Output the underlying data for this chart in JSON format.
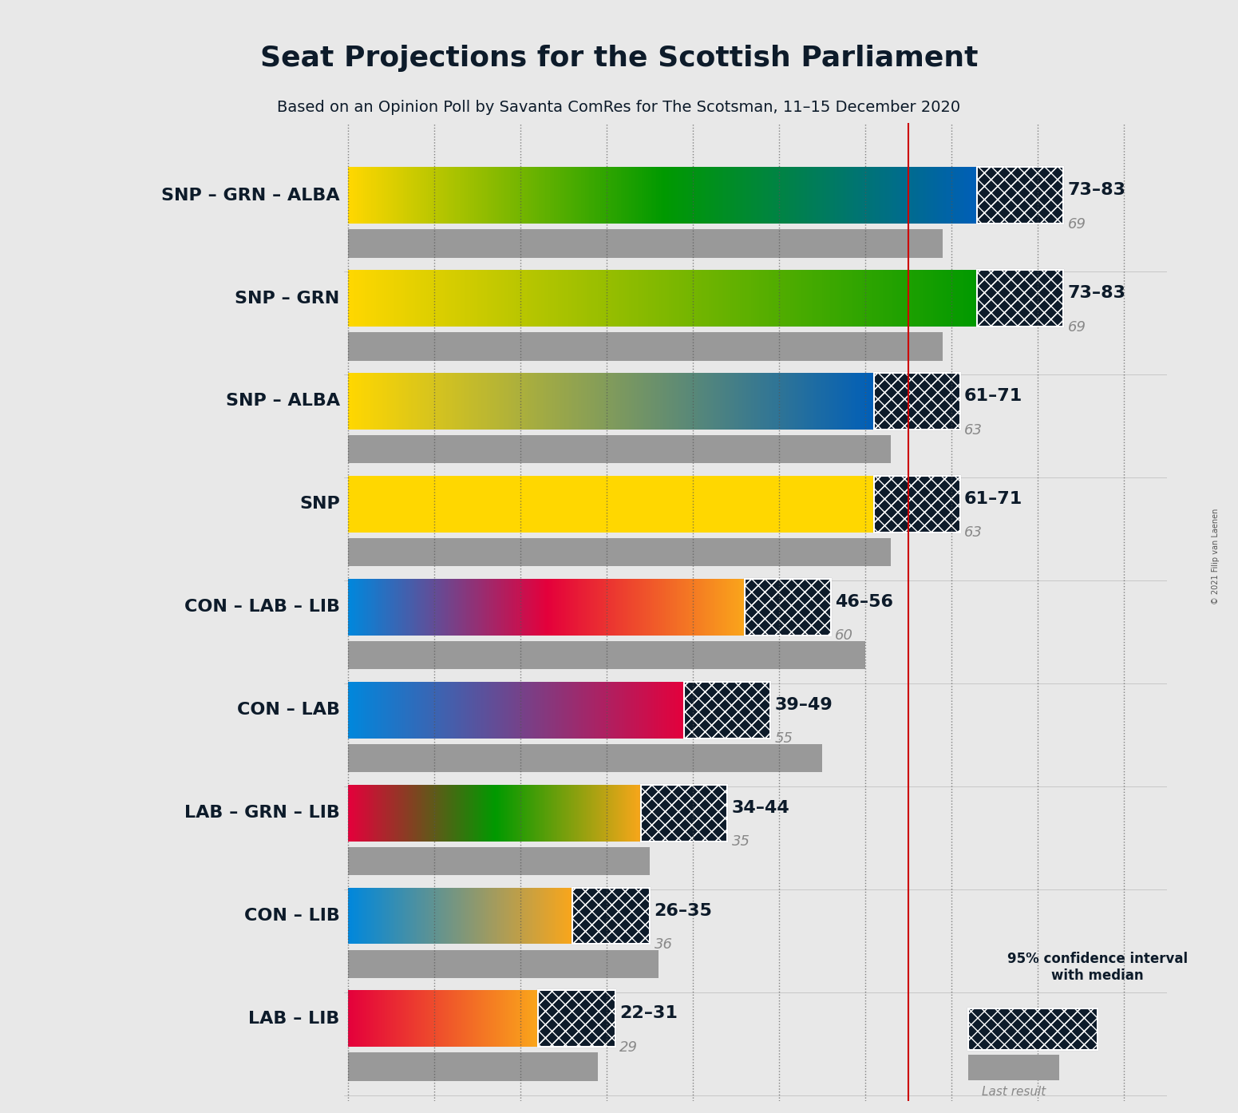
{
  "title": "Seat Projections for the Scottish Parliament",
  "subtitle": "Based on an Opinion Poll by Savanta ComRes for The Scotsman, 11–15 December 2020",
  "copyright": "© 2021 Filip van Laenen",
  "background_color": "#e8e8e8",
  "majority_line": 65,
  "x_max": 95,
  "coalitions": [
    {
      "label": "SNP – GRN – ALBA",
      "ci_low": 73,
      "ci_high": 83,
      "median": 78,
      "last_result": 69,
      "colors": [
        "#FFD700",
        "#009900",
        "#005EB8"
      ],
      "underline": false
    },
    {
      "label": "SNP – GRN",
      "ci_low": 73,
      "ci_high": 83,
      "median": 78,
      "last_result": 69,
      "colors": [
        "#FFD700",
        "#009900"
      ],
      "underline": false
    },
    {
      "label": "SNP – ALBA",
      "ci_low": 61,
      "ci_high": 71,
      "median": 66,
      "last_result": 63,
      "colors": [
        "#FFD700",
        "#005EB8"
      ],
      "underline": false
    },
    {
      "label": "SNP",
      "ci_low": 61,
      "ci_high": 71,
      "median": 66,
      "last_result": 63,
      "colors": [
        "#FFD700"
      ],
      "underline": true
    },
    {
      "label": "CON – LAB – LIB",
      "ci_low": 46,
      "ci_high": 56,
      "median": 51,
      "last_result": 60,
      "colors": [
        "#0087DC",
        "#E4003B",
        "#FAA61A"
      ],
      "underline": false
    },
    {
      "label": "CON – LAB",
      "ci_low": 39,
      "ci_high": 49,
      "median": 44,
      "last_result": 55,
      "colors": [
        "#0087DC",
        "#E4003B"
      ],
      "underline": false
    },
    {
      "label": "LAB – GRN – LIB",
      "ci_low": 34,
      "ci_high": 44,
      "median": 39,
      "last_result": 35,
      "colors": [
        "#E4003B",
        "#009900",
        "#FAA61A"
      ],
      "underline": false
    },
    {
      "label": "CON – LIB",
      "ci_low": 26,
      "ci_high": 35,
      "median": 30,
      "last_result": 36,
      "colors": [
        "#0087DC",
        "#FAA61A"
      ],
      "underline": false
    },
    {
      "label": "LAB – LIB",
      "ci_low": 22,
      "ci_high": 31,
      "median": 26,
      "last_result": 29,
      "colors": [
        "#E4003B",
        "#FAA61A"
      ],
      "underline": false
    }
  ]
}
